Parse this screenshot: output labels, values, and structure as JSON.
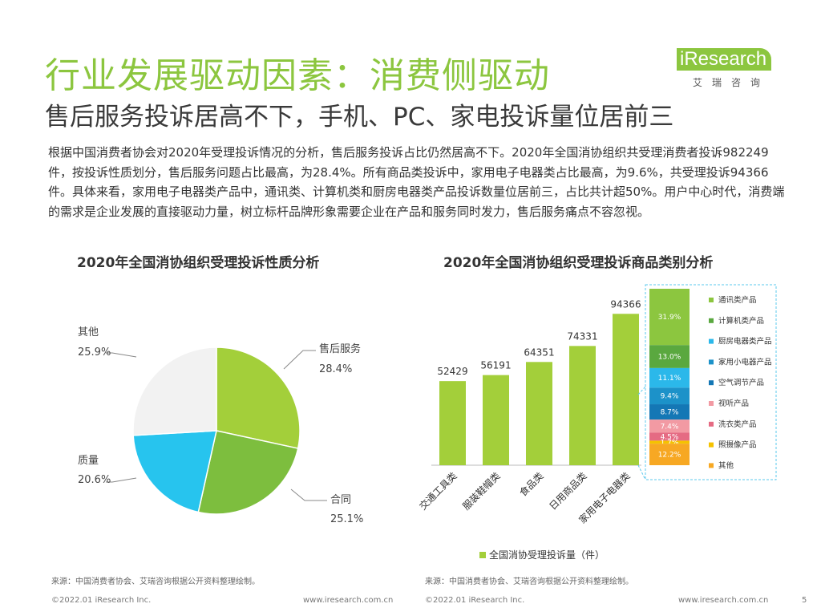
{
  "header": {
    "title": "行业发展驱动因素：消费侧驱动",
    "subtitle": "售后服务投诉居高不下，手机、PC、家电投诉量位居前三"
  },
  "logo": {
    "text": "iResearch",
    "sub": "艾瑞咨询"
  },
  "intro": "根据中国消费者协会对2020年受理投诉情况的分析，售后服务投诉占比仍然居高不下。2020年全国消协组织共受理消费者投诉982249件，按投诉性质划分，售后服务问题占比最高，为28.4%。所有商品类投诉中，家用电子电器类占比最高，为9.6%，共受理投诉94366件。具体来看，家用电子电器类产品中，通讯类、计算机类和厨房电器类产品投诉数量位居前三，占比共计超50%。用户中心时代，消费端的需求是企业发展的直接驱动力量，树立标杆品牌形象需要企业在产品和服务同时发力，售后服务痛点不容忽视。",
  "chart_data": [
    {
      "type": "pie",
      "title": "2020年全国消协组织受理投诉性质分析",
      "slices": [
        {
          "label": "售后服务",
          "value": 28.4,
          "display": "28.4%",
          "color": "#a3cf3a"
        },
        {
          "label": "合同",
          "value": 25.1,
          "display": "25.1%",
          "color": "#7dbe3e"
        },
        {
          "label": "质量",
          "value": 20.6,
          "display": "20.6%",
          "color": "#27c4ee"
        },
        {
          "label": "其他",
          "value": 25.9,
          "display": "25.9%",
          "color": "#f2f2f2"
        }
      ]
    },
    {
      "type": "bar",
      "title": "2020年全国消协组织受理投诉商品类别分析",
      "categories": [
        "交通工具类",
        "服装鞋帽类",
        "食品类",
        "日用商品类",
        "家用电子电器类"
      ],
      "values": [
        52429,
        56191,
        64351,
        74331,
        94366
      ],
      "series": [
        {
          "name": "全国消协受理投诉量（件）",
          "color": "#a3cf3a"
        }
      ],
      "stack": {
        "of": "家用电子电器类",
        "segments": [
          {
            "label": "通讯类产品",
            "value": 31.9,
            "display": "31.9%",
            "color": "#8cc63f"
          },
          {
            "label": "计算机类产品",
            "value": 13.0,
            "display": "13.0%",
            "color": "#5aa83f"
          },
          {
            "label": "厨房电器类产品",
            "value": 11.1,
            "display": "11.1%",
            "color": "#2bb8ea"
          },
          {
            "label": "家用小电器产品",
            "value": 9.4,
            "display": "9.4%",
            "color": "#1c92c9"
          },
          {
            "label": "空气调节产品",
            "value": 8.7,
            "display": "8.7%",
            "color": "#1477b5"
          },
          {
            "label": "视听产品",
            "value": 7.4,
            "display": "7.4%",
            "color": "#f29aa3"
          },
          {
            "label": "洗衣类产品",
            "value": 4.5,
            "display": "4.5%",
            "color": "#e56b83"
          },
          {
            "label": "照摄像产品",
            "value": 1.7,
            "display": "1.7%",
            "color": "#f5c200"
          },
          {
            "label": "其他",
            "value": 12.2,
            "display": "12.2%",
            "color": "#f7a823"
          }
        ]
      }
    }
  ],
  "sources": {
    "left": "来源：中国消费者协会、艾瑞咨询根据公开资料整理绘制。",
    "right": "来源：中国消费者协会、艾瑞咨询根据公开资料整理绘制。"
  },
  "footer": {
    "copyright_left": "©2022.01 iResearch Inc.",
    "url_left": "www.iresearch.com.cn",
    "copyright_right": "©2022.01 iResearch Inc.",
    "url_right": "www.iresearch.com.cn",
    "page": "5"
  }
}
